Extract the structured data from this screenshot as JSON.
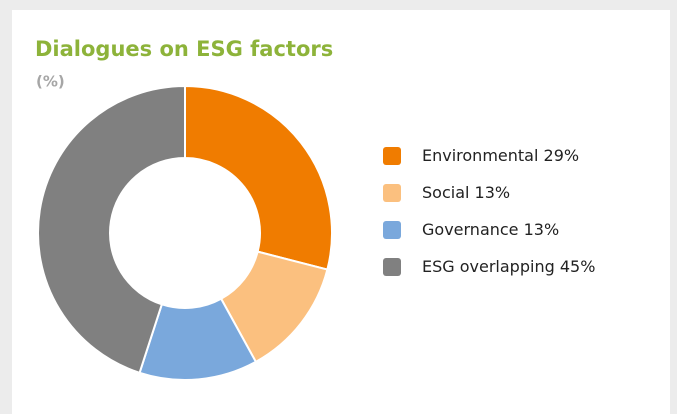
{
  "chart_data": {
    "type": "donut",
    "title": "Dialogues on ESG factors",
    "subtitle": "(%)",
    "categories": [
      "Environmental",
      "Social",
      "Governance",
      "ESG overlapping"
    ],
    "values": [
      29,
      13,
      13,
      45
    ],
    "value_labels": [
      "29%",
      "13%",
      "13%",
      "45%"
    ],
    "colors": [
      "#f07c00",
      "#fbc07f",
      "#7aa8dc",
      "#808080"
    ],
    "legend": "right"
  }
}
